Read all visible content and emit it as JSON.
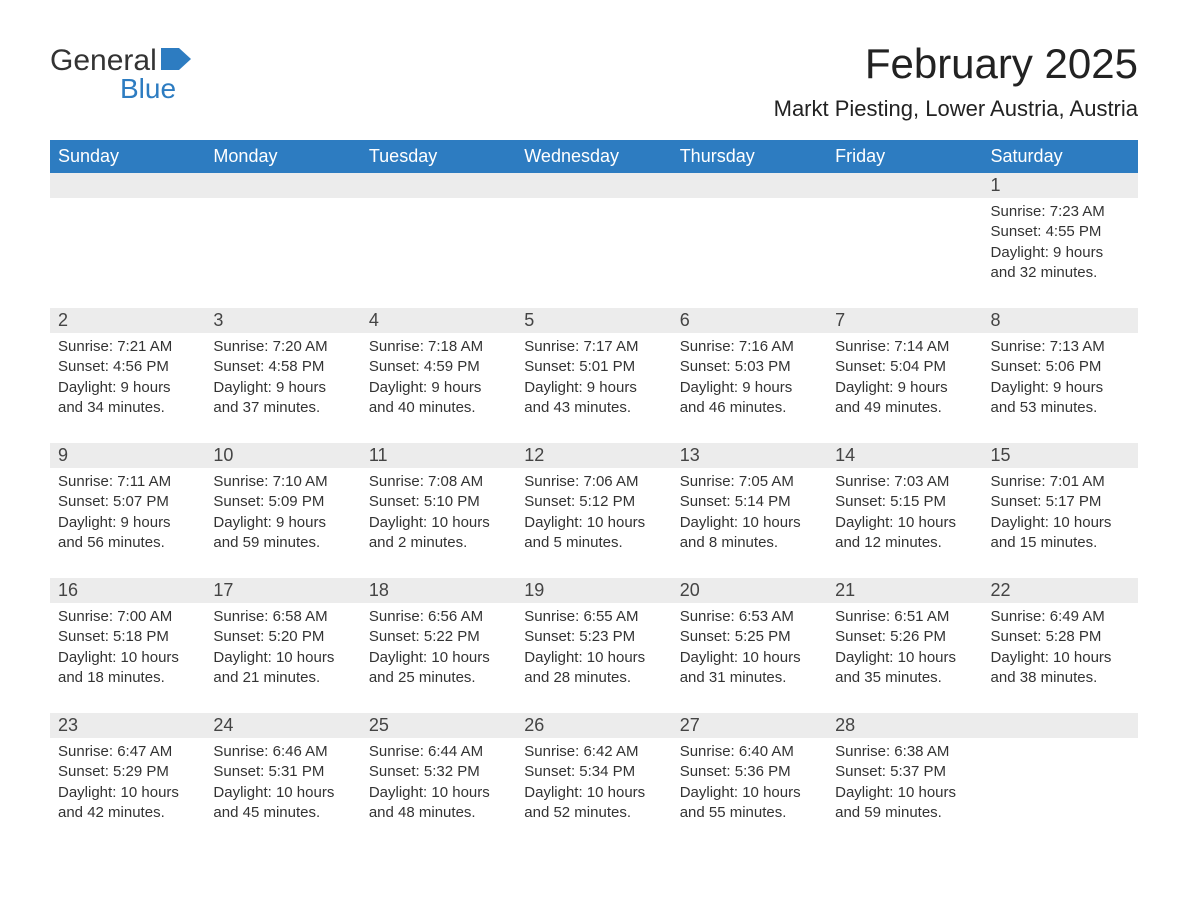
{
  "logo": {
    "word1": "General",
    "word2": "Blue"
  },
  "title": "February 2025",
  "location": "Markt Piesting, Lower Austria, Austria",
  "colors": {
    "header_bg": "#2d7cc1",
    "header_text": "#ffffff",
    "row_accent": "#2d7cc1",
    "daynum_bg": "#ececec",
    "body_text": "#333333",
    "page_bg": "#ffffff"
  },
  "typography": {
    "title_fontsize": 42,
    "location_fontsize": 22,
    "dow_fontsize": 18,
    "daynum_fontsize": 18,
    "cell_fontsize": 15
  },
  "dow": [
    "Sunday",
    "Monday",
    "Tuesday",
    "Wednesday",
    "Thursday",
    "Friday",
    "Saturday"
  ],
  "weeks": [
    [
      null,
      null,
      null,
      null,
      null,
      null,
      {
        "n": "1",
        "sunrise": "7:23 AM",
        "sunset": "4:55 PM",
        "dl": "9 hours and 32 minutes."
      }
    ],
    [
      {
        "n": "2",
        "sunrise": "7:21 AM",
        "sunset": "4:56 PM",
        "dl": "9 hours and 34 minutes."
      },
      {
        "n": "3",
        "sunrise": "7:20 AM",
        "sunset": "4:58 PM",
        "dl": "9 hours and 37 minutes."
      },
      {
        "n": "4",
        "sunrise": "7:18 AM",
        "sunset": "4:59 PM",
        "dl": "9 hours and 40 minutes."
      },
      {
        "n": "5",
        "sunrise": "7:17 AM",
        "sunset": "5:01 PM",
        "dl": "9 hours and 43 minutes."
      },
      {
        "n": "6",
        "sunrise": "7:16 AM",
        "sunset": "5:03 PM",
        "dl": "9 hours and 46 minutes."
      },
      {
        "n": "7",
        "sunrise": "7:14 AM",
        "sunset": "5:04 PM",
        "dl": "9 hours and 49 minutes."
      },
      {
        "n": "8",
        "sunrise": "7:13 AM",
        "sunset": "5:06 PM",
        "dl": "9 hours and 53 minutes."
      }
    ],
    [
      {
        "n": "9",
        "sunrise": "7:11 AM",
        "sunset": "5:07 PM",
        "dl": "9 hours and 56 minutes."
      },
      {
        "n": "10",
        "sunrise": "7:10 AM",
        "sunset": "5:09 PM",
        "dl": "9 hours and 59 minutes."
      },
      {
        "n": "11",
        "sunrise": "7:08 AM",
        "sunset": "5:10 PM",
        "dl": "10 hours and 2 minutes."
      },
      {
        "n": "12",
        "sunrise": "7:06 AM",
        "sunset": "5:12 PM",
        "dl": "10 hours and 5 minutes."
      },
      {
        "n": "13",
        "sunrise": "7:05 AM",
        "sunset": "5:14 PM",
        "dl": "10 hours and 8 minutes."
      },
      {
        "n": "14",
        "sunrise": "7:03 AM",
        "sunset": "5:15 PM",
        "dl": "10 hours and 12 minutes."
      },
      {
        "n": "15",
        "sunrise": "7:01 AM",
        "sunset": "5:17 PM",
        "dl": "10 hours and 15 minutes."
      }
    ],
    [
      {
        "n": "16",
        "sunrise": "7:00 AM",
        "sunset": "5:18 PM",
        "dl": "10 hours and 18 minutes."
      },
      {
        "n": "17",
        "sunrise": "6:58 AM",
        "sunset": "5:20 PM",
        "dl": "10 hours and 21 minutes."
      },
      {
        "n": "18",
        "sunrise": "6:56 AM",
        "sunset": "5:22 PM",
        "dl": "10 hours and 25 minutes."
      },
      {
        "n": "19",
        "sunrise": "6:55 AM",
        "sunset": "5:23 PM",
        "dl": "10 hours and 28 minutes."
      },
      {
        "n": "20",
        "sunrise": "6:53 AM",
        "sunset": "5:25 PM",
        "dl": "10 hours and 31 minutes."
      },
      {
        "n": "21",
        "sunrise": "6:51 AM",
        "sunset": "5:26 PM",
        "dl": "10 hours and 35 minutes."
      },
      {
        "n": "22",
        "sunrise": "6:49 AM",
        "sunset": "5:28 PM",
        "dl": "10 hours and 38 minutes."
      }
    ],
    [
      {
        "n": "23",
        "sunrise": "6:47 AM",
        "sunset": "5:29 PM",
        "dl": "10 hours and 42 minutes."
      },
      {
        "n": "24",
        "sunrise": "6:46 AM",
        "sunset": "5:31 PM",
        "dl": "10 hours and 45 minutes."
      },
      {
        "n": "25",
        "sunrise": "6:44 AM",
        "sunset": "5:32 PM",
        "dl": "10 hours and 48 minutes."
      },
      {
        "n": "26",
        "sunrise": "6:42 AM",
        "sunset": "5:34 PM",
        "dl": "10 hours and 52 minutes."
      },
      {
        "n": "27",
        "sunrise": "6:40 AM",
        "sunset": "5:36 PM",
        "dl": "10 hours and 55 minutes."
      },
      {
        "n": "28",
        "sunrise": "6:38 AM",
        "sunset": "5:37 PM",
        "dl": "10 hours and 59 minutes."
      },
      null
    ]
  ],
  "labels": {
    "sunrise": "Sunrise: ",
    "sunset": "Sunset: ",
    "daylight": "Daylight: "
  }
}
